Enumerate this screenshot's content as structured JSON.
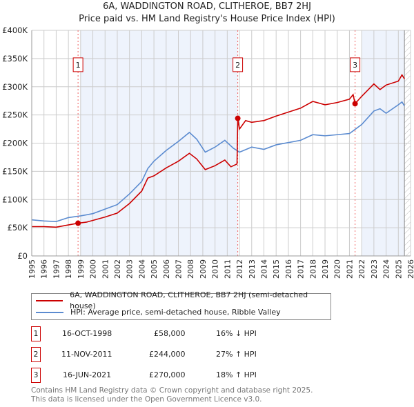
{
  "chart_data": {
    "type": "line",
    "title": "6A, WADDINGTON ROAD, CLITHEROE, BB7 2HJ",
    "subtitle": "Price paid vs. HM Land Registry's House Price Index (HPI)",
    "xlim": [
      1995,
      2026
    ],
    "ylim": [
      0,
      400000
    ],
    "y_ticks": [
      {
        "v": 0,
        "label": "£0"
      },
      {
        "v": 50000,
        "label": "£50K"
      },
      {
        "v": 100000,
        "label": "£100K"
      },
      {
        "v": 150000,
        "label": "£150K"
      },
      {
        "v": 200000,
        "label": "£200K"
      },
      {
        "v": 250000,
        "label": "£250K"
      },
      {
        "v": 300000,
        "label": "£300K"
      },
      {
        "v": 350000,
        "label": "£350K"
      },
      {
        "v": 400000,
        "label": "£400K"
      }
    ],
    "x_ticks": [
      "1995",
      "1996",
      "1997",
      "1998",
      "1999",
      "2000",
      "2001",
      "2002",
      "2003",
      "2004",
      "2005",
      "2006",
      "2007",
      "2008",
      "2009",
      "2010",
      "2011",
      "2012",
      "2013",
      "2014",
      "2015",
      "2016",
      "2017",
      "2018",
      "2019",
      "2020",
      "2021",
      "2022",
      "2023",
      "2024",
      "2025",
      "2026"
    ],
    "grid": true,
    "series": [
      {
        "name": "6A, WADDINGTON ROAD, CLITHEROE, BB7 2HJ (semi-detached house)",
        "color": "#cc0000",
        "x": [
          1995,
          1996,
          1997,
          1998,
          1998.79,
          1999.5,
          2000,
          2001,
          2002,
          2003,
          2004,
          2004.5,
          2005,
          2006,
          2007,
          2007.9,
          2008.5,
          2009.2,
          2010,
          2010.8,
          2011.3,
          2011.8,
          2011.86,
          2012,
          2012.5,
          2013,
          2014,
          2015,
          2016,
          2017,
          2018,
          2019,
          2020,
          2021,
          2021.3,
          2021.46,
          2022,
          2023,
          2023.5,
          2024,
          2025,
          2025.3,
          2025.5
        ],
        "y": [
          52000,
          52000,
          51000,
          55000,
          58000,
          60000,
          63000,
          69000,
          76000,
          93000,
          115000,
          138000,
          142000,
          156000,
          168000,
          182000,
          172000,
          153000,
          160000,
          170000,
          158000,
          163000,
          244000,
          225000,
          240000,
          237000,
          240000,
          248000,
          255000,
          262000,
          274000,
          268000,
          272000,
          278000,
          286000,
          270000,
          283000,
          305000,
          295000,
          303000,
          310000,
          321000,
          314000
        ]
      },
      {
        "name": "HPI: Average price, semi-detached house, Ribble Valley",
        "color": "#5b8bd0",
        "x": [
          1995,
          1996,
          1997,
          1998,
          1999,
          2000,
          2001,
          2002,
          2003,
          2004,
          2004.5,
          2005,
          2006,
          2007,
          2007.9,
          2008.5,
          2009.2,
          2010,
          2010.8,
          2011.5,
          2012,
          2013,
          2014,
          2015,
          2016,
          2017,
          2018,
          2019,
          2020,
          2021,
          2021.5,
          2022,
          2023,
          2023.5,
          2024,
          2025,
          2025.3,
          2025.5
        ],
        "y": [
          64000,
          62000,
          61000,
          68000,
          71000,
          75000,
          83000,
          91000,
          110000,
          132000,
          155000,
          168000,
          187000,
          203000,
          219000,
          207000,
          184000,
          193000,
          205000,
          191000,
          184000,
          193000,
          189000,
          197000,
          201000,
          205000,
          215000,
          213000,
          215000,
          217000,
          225000,
          233000,
          257000,
          261000,
          253000,
          268000,
          273000,
          266000
        ]
      }
    ],
    "sales": [
      {
        "num": "1",
        "x": 1998.79,
        "y": 58000,
        "date": "16-OCT-1998",
        "price": "£58,000",
        "delta": "16% ↓ HPI"
      },
      {
        "num": "2",
        "x": 2011.86,
        "y": 244000,
        "date": "11-NOV-2011",
        "price": "£244,000",
        "delta": "27% ↑ HPI"
      },
      {
        "num": "3",
        "x": 2021.46,
        "y": 270000,
        "date": "16-JUN-2021",
        "price": "£270,000",
        "delta": "18% ↑ HPI"
      }
    ],
    "shaded_ranges": [
      [
        1999,
        2011.86
      ],
      [
        2022,
        2025.5
      ]
    ],
    "forecast_hatch": [
      2025.5,
      2026
    ]
  },
  "footer": {
    "line1": "Contains HM Land Registry data © Crown copyright and database right 2025.",
    "line2": "This data is licensed under the Open Government Licence v3.0."
  }
}
